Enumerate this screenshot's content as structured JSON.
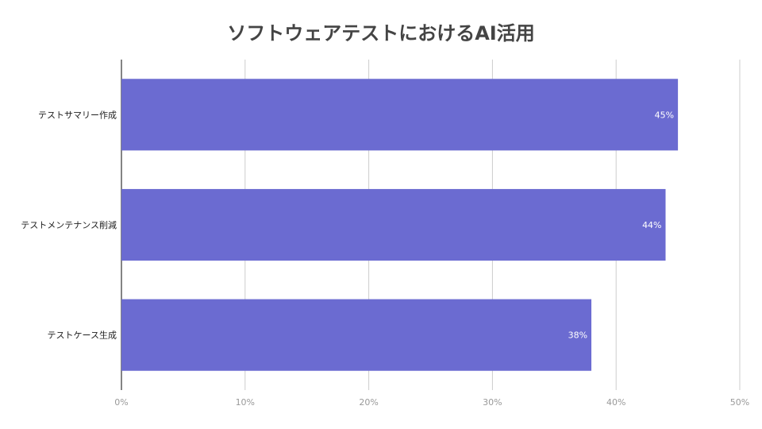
{
  "chart_data": {
    "type": "bar",
    "orientation": "horizontal",
    "title": "ソフトウェアテストにおけるAI活用",
    "categories": [
      "テストサマリー作成",
      "テストメンテナンス削減",
      "テストケース生成"
    ],
    "values": [
      45,
      44,
      38
    ],
    "data_labels": [
      "45%",
      "44%",
      "38%"
    ],
    "x_ticks": [
      "0%",
      "10%",
      "20%",
      "30%",
      "40%",
      "50%"
    ],
    "xlim": [
      0,
      50
    ],
    "grid": true,
    "legend": "none",
    "bar_color": "#6b6bd1",
    "grid_color": "#cccccc",
    "axis_color": "#333333"
  }
}
